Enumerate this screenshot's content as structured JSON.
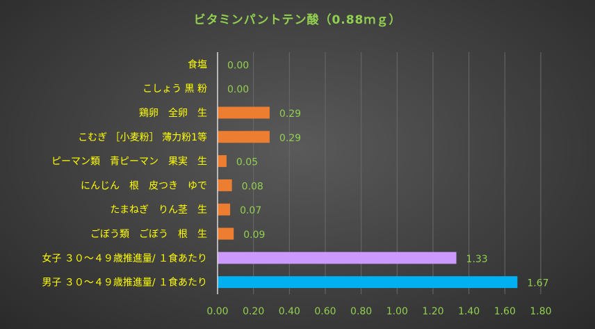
{
  "chart_data": {
    "type": "bar",
    "orientation": "horizontal",
    "title": "ビタミンパントテン酸（0.88ｍｇ）",
    "categories": [
      "食塩",
      "こしょう 黒 粉",
      "鶏卵　全卵　生",
      "こむぎ ［小麦粉］ 薄力粉1等",
      "ピーマン類　青ピーマン　果実　生",
      "にんじん　根　皮つき　ゆで",
      "たまねぎ　りん茎　生",
      "ごぼう類　ごぼう　根　生",
      "女子 ３０～４９歳推進量/ １食あたり",
      "男子 ３０～４９歳推進量/ １食あたり"
    ],
    "values": [
      0.0,
      0.0,
      0.29,
      0.29,
      0.05,
      0.08,
      0.07,
      0.09,
      1.33,
      1.67
    ],
    "value_labels": [
      "0.00",
      "0.00",
      "0.29",
      "0.29",
      "0.05",
      "0.08",
      "0.07",
      "0.09",
      "1.33",
      "1.67"
    ],
    "bar_colors": [
      "#ED7D31",
      "#ED7D31",
      "#ED7D31",
      "#ED7D31",
      "#ED7D31",
      "#ED7D31",
      "#ED7D31",
      "#ED7D31",
      "#CC99FF",
      "#00B0F0"
    ],
    "x_ticks": [
      "0.00",
      "0.20",
      "0.40",
      "0.60",
      "0.80",
      "1.00",
      "1.20",
      "1.40",
      "1.60",
      "1.80"
    ],
    "xlim": [
      0,
      1.8
    ],
    "grid": "vertical",
    "legend": "none",
    "colors": {
      "title": "#92D050",
      "category_label": "#FFFF00",
      "value_label": "#92D050",
      "tick_label": "#92D050",
      "grid": "#6a6a6a",
      "axis": "#dcdcdc"
    }
  }
}
